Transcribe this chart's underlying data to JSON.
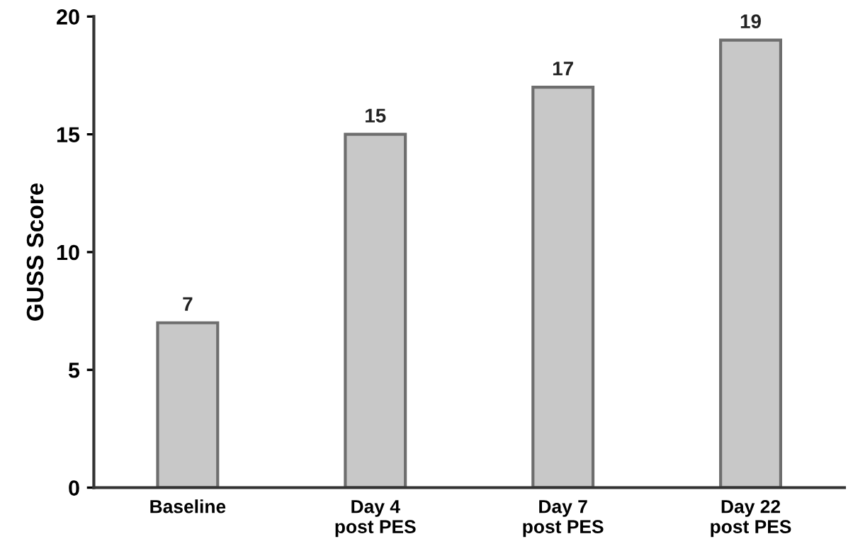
{
  "chart_data": {
    "type": "bar",
    "ylabel": "GUSS Score",
    "categories": [
      "Baseline",
      "Day 4\npost PES",
      "Day 7\npost PES",
      "Day 22\npost PES"
    ],
    "values": [
      7,
      15,
      17,
      19
    ],
    "color": "#c8c8c8",
    "ylim": [
      0,
      20
    ],
    "yticks": [
      0,
      5,
      10,
      15,
      20
    ],
    "grid": false,
    "data_labels": true
  }
}
